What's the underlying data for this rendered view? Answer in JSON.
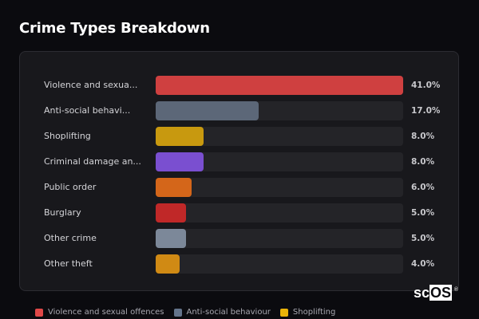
{
  "title": "Crime Types Breakdown",
  "logo": {
    "prefix": "sc",
    "highlight": "OS",
    "mark": "®"
  },
  "rows": [
    {
      "label": "Violence and sexua...",
      "value": "41.0%",
      "color": "#cf4040"
    },
    {
      "label": "Anti-social behavi...",
      "value": "17.0%",
      "color": "#5c6778"
    },
    {
      "label": "Shoplifting",
      "value": "8.0%",
      "color": "#c8990f"
    },
    {
      "label": "Criminal damage an...",
      "value": "8.0%",
      "color": "#7a4fd0"
    },
    {
      "label": "Public order",
      "value": "6.0%",
      "color": "#d4661a"
    },
    {
      "label": "Burglary",
      "value": "5.0%",
      "color": "#c02828"
    },
    {
      "label": "Other crime",
      "value": "5.0%",
      "color": "#7c8899"
    },
    {
      "label": "Other theft",
      "value": "4.0%",
      "color": "#d08a14"
    }
  ],
  "legend": [
    {
      "label": "Violence and sexual offences",
      "color": "#e04848"
    },
    {
      "label": "Anti-social behaviour",
      "color": "#64748b"
    },
    {
      "label": "Shoplifting",
      "color": "#eab308"
    }
  ],
  "chart_data": {
    "type": "bar",
    "orientation": "horizontal",
    "title": "Crime Types Breakdown",
    "categories": [
      "Violence and sexual offences",
      "Anti-social behaviour",
      "Shoplifting",
      "Criminal damage and arson",
      "Public order",
      "Burglary",
      "Other crime",
      "Other theft"
    ],
    "category_labels_displayed": [
      "Violence and sexua...",
      "Anti-social behavi...",
      "Shoplifting",
      "Criminal damage an...",
      "Public order",
      "Burglary",
      "Other crime",
      "Other theft"
    ],
    "values": [
      41.0,
      17.0,
      8.0,
      8.0,
      6.0,
      5.0,
      5.0,
      4.0
    ],
    "value_labels": [
      "41.0%",
      "17.0%",
      "8.0%",
      "8.0%",
      "6.0%",
      "5.0%",
      "5.0%",
      "4.0%"
    ],
    "unit": "%",
    "xlim": [
      0,
      41.0
    ],
    "xlabel": "",
    "ylabel": "",
    "grid": false,
    "legend_position": "bottom",
    "legend_entries": [
      "Violence and sexual offences",
      "Anti-social behaviour",
      "Shoplifting"
    ]
  }
}
